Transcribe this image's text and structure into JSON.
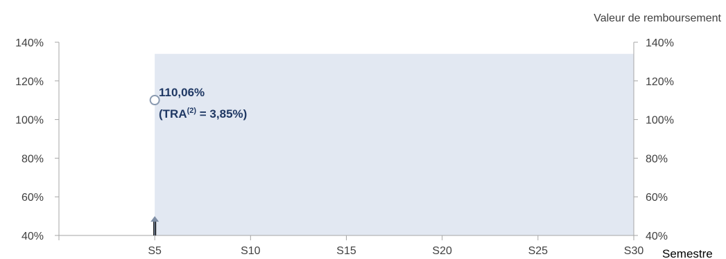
{
  "chart_data": {
    "type": "scatter",
    "x_axis": {
      "label": "Semestre",
      "min": 0,
      "max": 30,
      "ticks": [
        5,
        10,
        15,
        20,
        25,
        30
      ],
      "tick_labels": [
        "S5",
        "S10",
        "S15",
        "S20",
        "S25",
        "S30"
      ]
    },
    "y_axis_left": {
      "min": 40,
      "max": 140,
      "ticks": [
        40,
        60,
        80,
        100,
        120,
        140
      ],
      "tick_labels": [
        "40%",
        "60%",
        "80%",
        "100%",
        "120%",
        "140%"
      ]
    },
    "y_axis_right": {
      "label": "Valeur de remboursement",
      "min": 40,
      "max": 140,
      "ticks": [
        40,
        60,
        80,
        100,
        120,
        140
      ],
      "tick_labels": [
        "40%",
        "60%",
        "80%",
        "100%",
        "120%",
        "140%"
      ]
    },
    "shaded_region": {
      "x_from": 5,
      "x_to": 30,
      "y_top": 134
    },
    "points": [
      {
        "x": 5,
        "y": 110.06
      }
    ],
    "arrow": {
      "x": 5,
      "y_from": 40,
      "y_to": 50
    },
    "annotation": {
      "line1": "110,06%",
      "line2_prefix": "(TRA",
      "line2_sup": "(2)",
      "line2_suffix": " = 3,85%)"
    },
    "colors": {
      "shade": "#e2e8f2",
      "marker": "#8a9ab0",
      "annotation": "#1f3864",
      "axis": "#a6a6a6",
      "arrow": "#7f8fa6"
    },
    "grid": false
  }
}
